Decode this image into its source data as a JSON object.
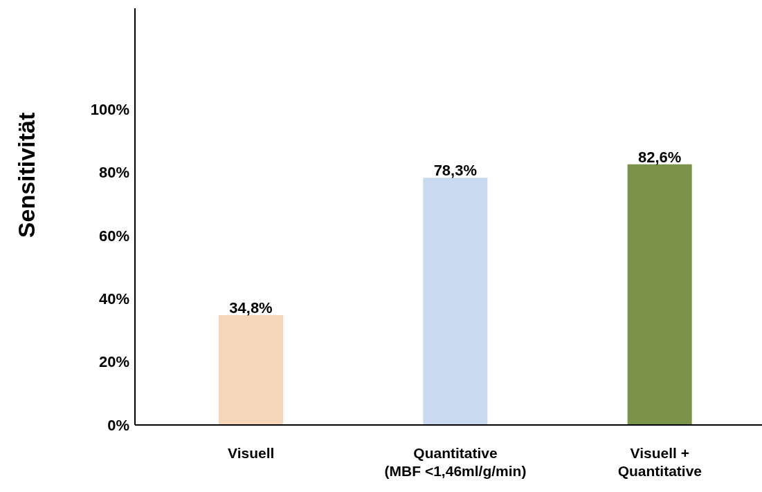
{
  "chart_data": {
    "type": "bar",
    "ylabel": "Sensitivität",
    "categories": [
      "Visuell",
      "Quantitative\n(MBF <1,46ml/g/min)",
      "Visuell +\nQuantitative"
    ],
    "values": [
      34.8,
      78.3,
      82.6
    ],
    "colors": [
      "#f5d6b9",
      "#c9d9f0",
      "#7b9249"
    ],
    "value_labels": [
      "34,8%",
      "78,3%",
      "82,6%"
    ],
    "ylim": [
      0,
      132
    ],
    "yticks": [
      {
        "value": 0,
        "label": "0%"
      },
      {
        "value": 20,
        "label": "20%"
      },
      {
        "value": 40,
        "label": "40%"
      },
      {
        "value": 60,
        "label": "60%"
      },
      {
        "value": 80,
        "label": "80%"
      },
      {
        "value": 100,
        "label": "100%"
      }
    ],
    "grid": false,
    "legend": false
  }
}
